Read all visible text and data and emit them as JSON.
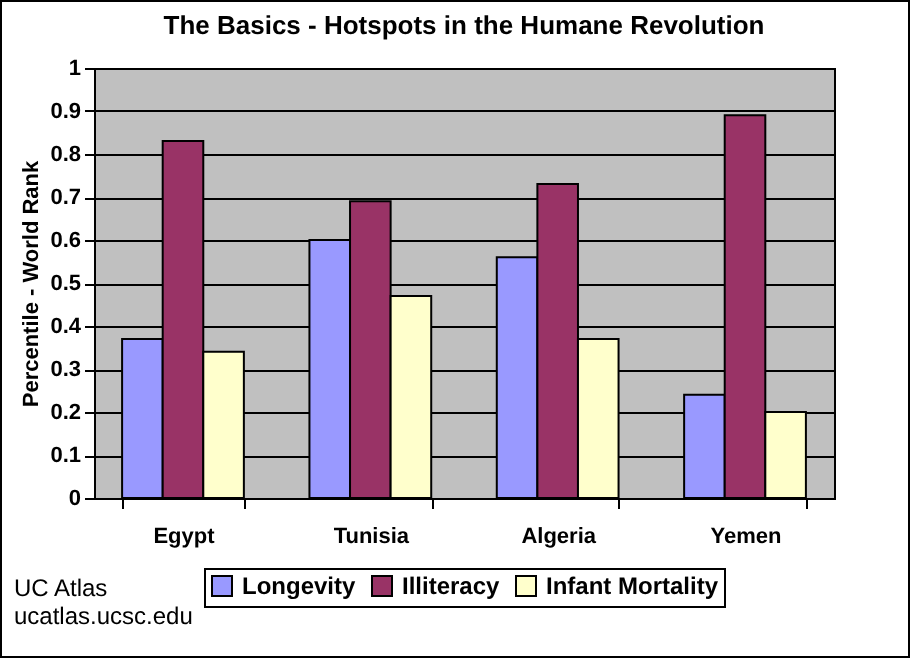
{
  "chart_data": {
    "type": "bar",
    "title": "The Basics - Hotspots in the Humane Revolution",
    "ylabel": "Percentile - World Rank",
    "categories": [
      "Egypt",
      "Tunisia",
      "Algeria",
      "Yemen"
    ],
    "series": [
      {
        "name": "Longevity",
        "color": "#9999ff",
        "values": [
          0.37,
          0.6,
          0.56,
          0.24
        ]
      },
      {
        "name": "Illiteracy",
        "color": "#993366",
        "values": [
          0.83,
          0.69,
          0.73,
          0.89
        ]
      },
      {
        "name": "Infant Mortality",
        "color": "#ffffcc",
        "values": [
          0.34,
          0.47,
          0.37,
          0.2
        ]
      }
    ],
    "ylim": [
      0,
      1
    ],
    "yticks": [
      0,
      0.1,
      0.2,
      0.3,
      0.4,
      0.5,
      0.6,
      0.7,
      0.8,
      0.9,
      1
    ],
    "grid": "y",
    "legend": "bottom",
    "annotations": [
      "UC Atlas",
      "ucatlas.ucsc.edu"
    ]
  }
}
